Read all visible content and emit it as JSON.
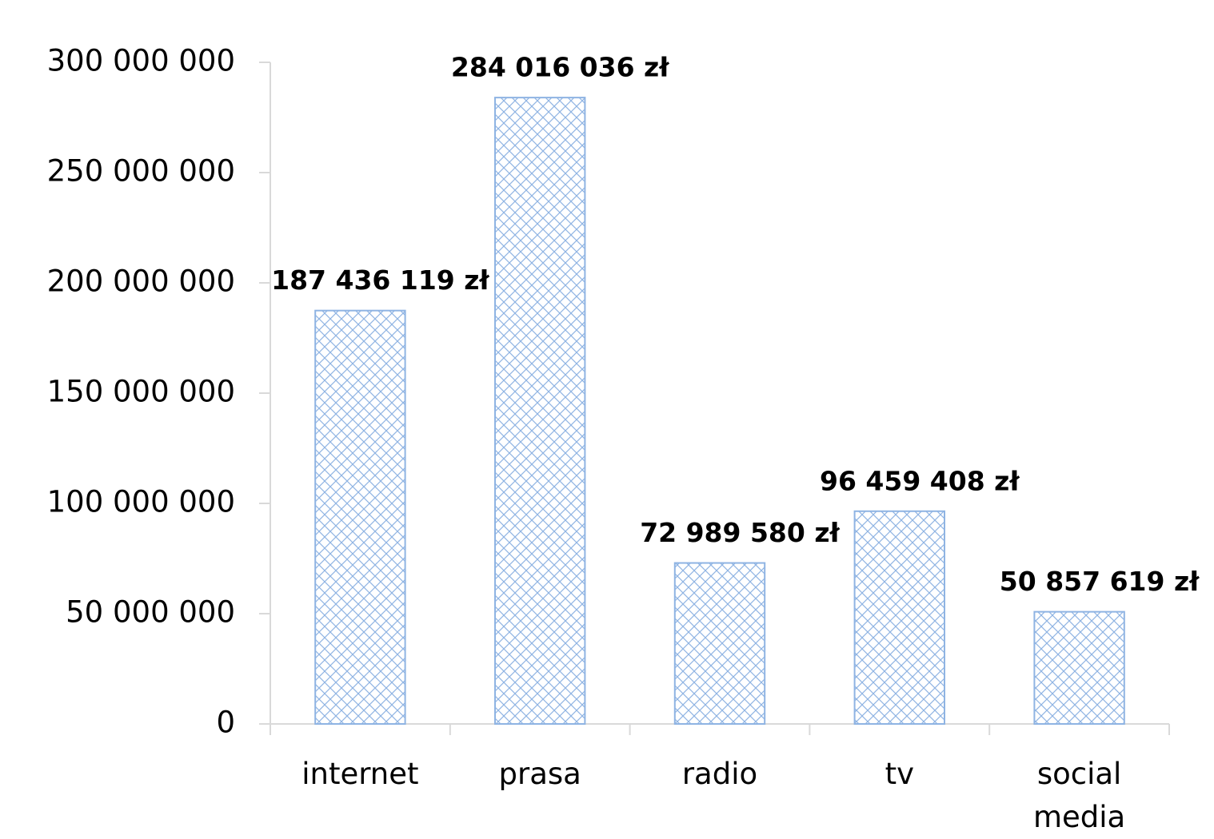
{
  "chart_data": {
    "type": "bar",
    "categories": [
      "internet",
      "prasa",
      "radio",
      "tv",
      "social media"
    ],
    "values": [
      187436119,
      284016036,
      72989580,
      96459408,
      50857619
    ],
    "value_labels": [
      "187 436 119 zł",
      "284 016 036 zł",
      "72 989 580 zł",
      "96 459 408 zł",
      "50 857 619 zł"
    ],
    "color": "#8fb4e3",
    "ylim": [
      0,
      300000000
    ],
    "yticks": [
      0,
      {
        "value": 50000000,
        "label": "50 000 000"
      },
      {
        "value": 100000000,
        "label": "100 000 000"
      },
      {
        "value": 150000000,
        "label": "150 000 000"
      },
      {
        "value": 200000000,
        "label": "200 000 000"
      },
      {
        "value": 250000000,
        "label": "250 000 000"
      },
      {
        "value": 300000000,
        "label": "300 000 000"
      }
    ],
    "grid": false
  }
}
